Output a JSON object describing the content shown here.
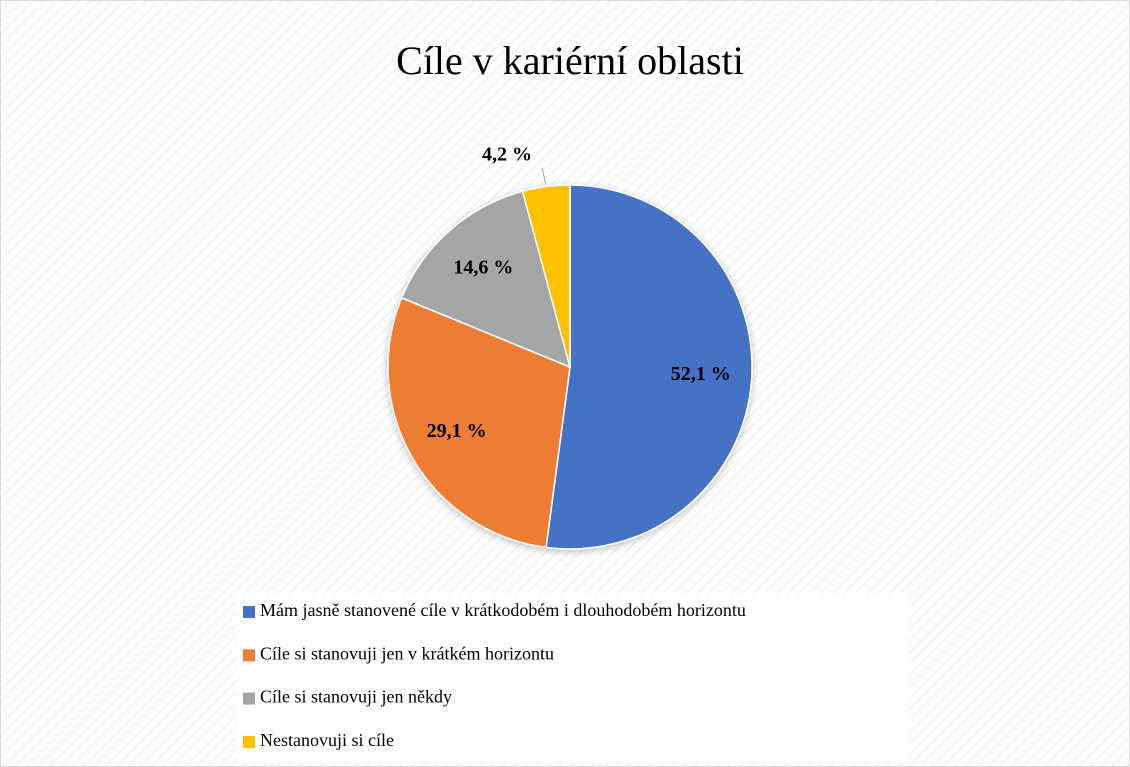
{
  "chart_data": {
    "type": "pie",
    "title": "Cíle v kariérní oblasti",
    "categories": [
      "Mám jasně stanovené cíle v krátkodobém i dlouhodobém horizontu",
      "Cíle si stanovuji jen v krátkém horizontu",
      "Cíle si stanovuji jen někdy",
      "Nestanovuji si cíle"
    ],
    "values": [
      52.1,
      29.1,
      14.6,
      4.2
    ],
    "value_labels": [
      "52,1 %",
      "29,1 %",
      "14,6 %",
      "4,2 %"
    ],
    "colors": [
      "#4472c4",
      "#ed7d31",
      "#a5a5a5",
      "#ffc000"
    ],
    "legend": "bottom"
  }
}
